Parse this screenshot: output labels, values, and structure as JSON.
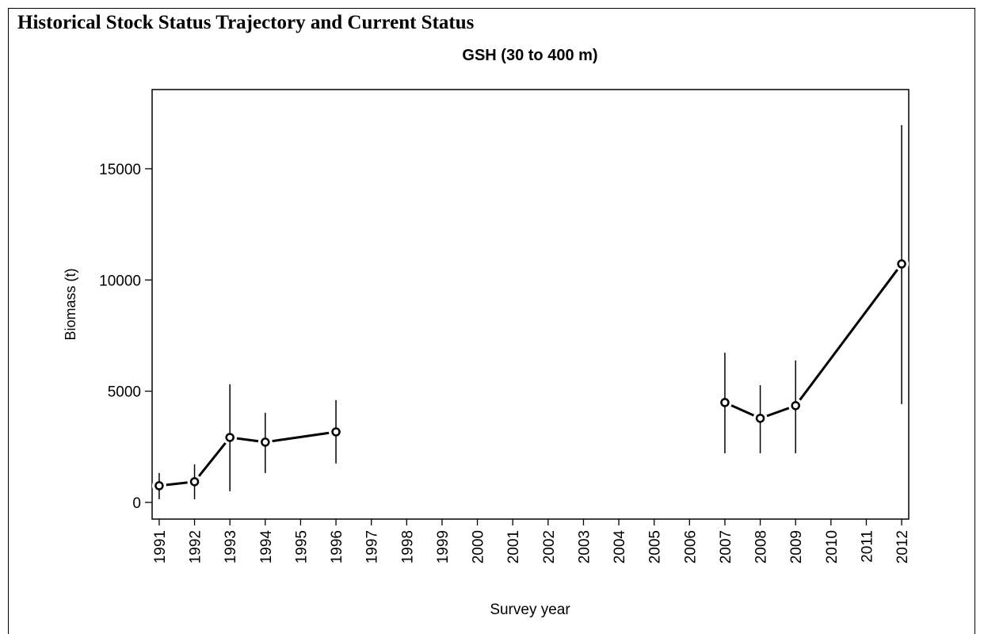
{
  "header": {
    "title": "Historical Stock Status Trajectory and Current Status"
  },
  "chart_data": {
    "type": "line",
    "title": "GSH (30 to 400 m)",
    "x_label": "Survey year",
    "y_label": "Biomass (t)",
    "color": "#000000",
    "series": [
      {
        "x": [
          1991,
          1992,
          1993,
          1994,
          1996
        ],
        "values": [
          750,
          930,
          2920,
          2710,
          3170
        ],
        "ci_lower": [
          140,
          140,
          500,
          1320,
          1750
        ],
        "ci_upper": [
          1320,
          1710,
          5310,
          4030,
          4600
        ]
      },
      {
        "x": [
          2007,
          2008,
          2009,
          2012
        ],
        "values": [
          4490,
          3780,
          4350,
          10720
        ],
        "ci_lower": [
          2210,
          2210,
          2210,
          4420
        ],
        "ci_upper": [
          6730,
          5270,
          6380,
          16960
        ]
      }
    ],
    "xlim": [
      1990.8,
      2012.2
    ],
    "ylim": [
      -750,
      18560
    ],
    "xticks": [
      1991,
      1992,
      1993,
      1994,
      1995,
      1996,
      1997,
      1998,
      1999,
      2000,
      2001,
      2002,
      2003,
      2004,
      2005,
      2006,
      2007,
      2008,
      2009,
      2010,
      2011,
      2012
    ],
    "yticks": [
      0,
      5000,
      10000,
      15000
    ]
  }
}
